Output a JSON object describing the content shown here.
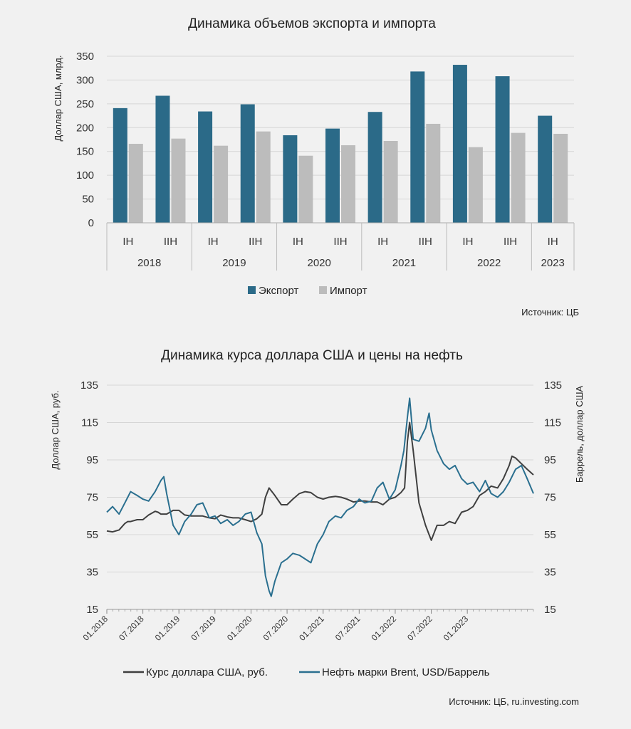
{
  "chart_data": [
    {
      "type": "bar",
      "title": "Динамика объемов экспорта и импорта",
      "ylabel": "Доллар США, млрд.",
      "xlabel": "",
      "ylim": [
        0,
        350
      ],
      "yticks": [
        0,
        50,
        100,
        150,
        200,
        250,
        300,
        350
      ],
      "categories": [
        "IH",
        "IIH",
        "IH",
        "IIH",
        "IH",
        "IIH",
        "IH",
        "IIH",
        "IH",
        "IIH",
        "IH"
      ],
      "years": [
        {
          "label": "2018",
          "span": 2
        },
        {
          "label": "2019",
          "span": 2
        },
        {
          "label": "2020",
          "span": 2
        },
        {
          "label": "2021",
          "span": 2
        },
        {
          "label": "2022",
          "span": 2
        },
        {
          "label": "2023",
          "span": 1
        }
      ],
      "series": [
        {
          "name": "Экспорт",
          "color": "#2b6a88",
          "values": [
            241,
            267,
            234,
            249,
            184,
            198,
            233,
            318,
            332,
            308,
            225
          ]
        },
        {
          "name": "Импорт",
          "color": "#bcbcbc",
          "values": [
            166,
            177,
            162,
            192,
            141,
            163,
            172,
            208,
            159,
            189,
            187
          ]
        }
      ],
      "source": "Источник: ЦБ",
      "legend_position": "bottom"
    },
    {
      "type": "line",
      "title": "Динамика курса доллара США и цены на нефть",
      "ylabel_left": "Доллар США, руб.",
      "ylabel_right": "Баррель, доллар США",
      "ylim": [
        15,
        135
      ],
      "yticks": [
        15,
        35,
        55,
        75,
        95,
        115,
        135
      ],
      "xlim": [
        2018.0,
        2023.917
      ],
      "xtick_values": [
        2018.0,
        2018.5,
        2019.0,
        2019.5,
        2020.0,
        2020.5,
        2021.0,
        2021.5,
        2022.0,
        2022.5,
        2023.0
      ],
      "xtick_labels": [
        "01.2018",
        "07.2018",
        "01.2019",
        "07.2019",
        "01.2020",
        "07.2020",
        "01.2021",
        "07.2021",
        "01.2022",
        "07.2022",
        "01.2023"
      ],
      "series": [
        {
          "name": "Курс доллара США, руб.",
          "color": "#3f3f3f",
          "axis": "left",
          "x": [
            2018.0,
            2018.08,
            2018.17,
            2018.25,
            2018.29,
            2018.33,
            2018.42,
            2018.5,
            2018.58,
            2018.67,
            2018.71,
            2018.75,
            2018.83,
            2018.92,
            2019.0,
            2019.08,
            2019.17,
            2019.25,
            2019.33,
            2019.42,
            2019.5,
            2019.58,
            2019.67,
            2019.75,
            2019.83,
            2019.92,
            2020.0,
            2020.08,
            2020.15,
            2020.2,
            2020.25,
            2020.33,
            2020.42,
            2020.5,
            2020.58,
            2020.67,
            2020.75,
            2020.83,
            2020.92,
            2021.0,
            2021.08,
            2021.17,
            2021.25,
            2021.33,
            2021.42,
            2021.5,
            2021.58,
            2021.67,
            2021.75,
            2021.83,
            2021.92,
            2022.0,
            2022.08,
            2022.13,
            2022.17,
            2022.2,
            2022.25,
            2022.33,
            2022.42,
            2022.47,
            2022.5,
            2022.55,
            2022.58,
            2022.67,
            2022.75,
            2022.83,
            2022.92,
            2023.0,
            2023.08,
            2023.17,
            2023.25,
            2023.33,
            2023.42,
            2023.5,
            2023.58,
            2023.62,
            2023.67,
            2023.75,
            2023.83,
            2023.917
          ],
          "values": [
            57,
            56.5,
            57.5,
            61,
            62,
            62,
            63,
            63,
            65.5,
            67.5,
            67,
            66,
            66,
            68,
            68,
            65.5,
            65,
            65,
            65,
            64,
            63.5,
            65.5,
            64.5,
            64,
            64,
            63,
            62,
            63.5,
            66,
            75,
            80,
            76,
            71,
            71,
            74,
            77,
            78,
            77.5,
            75,
            74,
            75,
            75.5,
            75,
            74,
            72.5,
            73,
            73,
            72.5,
            72.5,
            71,
            74,
            75,
            77.5,
            80,
            105,
            115,
            100,
            72,
            60,
            55,
            52,
            57,
            60,
            60,
            62,
            61,
            67,
            68,
            70,
            76,
            78,
            81,
            80,
            85,
            92,
            97,
            96,
            93,
            90,
            87
          ],
          "note": "right axis: Баррель, доллар США (same scale)"
        },
        {
          "name": "Нефть марки Brent,  USD/Баррель",
          "color": "#2a6f8f",
          "axis": "right",
          "x": [
            2018.0,
            2018.08,
            2018.17,
            2018.25,
            2018.33,
            2018.42,
            2018.5,
            2018.58,
            2018.67,
            2018.75,
            2018.79,
            2018.83,
            2018.92,
            2019.0,
            2019.08,
            2019.17,
            2019.25,
            2019.33,
            2019.42,
            2019.5,
            2019.58,
            2019.67,
            2019.75,
            2019.83,
            2019.92,
            2020.0,
            2020.08,
            2020.15,
            2020.2,
            2020.25,
            2020.28,
            2020.33,
            2020.42,
            2020.5,
            2020.58,
            2020.67,
            2020.75,
            2020.83,
            2020.92,
            2021.0,
            2021.08,
            2021.17,
            2021.25,
            2021.33,
            2021.42,
            2021.5,
            2021.58,
            2021.67,
            2021.75,
            2021.83,
            2021.92,
            2022.0,
            2022.08,
            2022.12,
            2022.17,
            2022.2,
            2022.25,
            2022.33,
            2022.42,
            2022.47,
            2022.5,
            2022.58,
            2022.67,
            2022.75,
            2022.83,
            2022.92,
            2023.0,
            2023.08,
            2023.17,
            2023.25,
            2023.33,
            2023.42,
            2023.5,
            2023.58,
            2023.67,
            2023.75,
            2023.83,
            2023.917
          ],
          "values": [
            67,
            70,
            66,
            72,
            78,
            76,
            74,
            73,
            78,
            84,
            86,
            77,
            60,
            55,
            62,
            66,
            71,
            72,
            64,
            65,
            61,
            63,
            60,
            62,
            66,
            67,
            56,
            50,
            33,
            25,
            22,
            30,
            40,
            42,
            45,
            44,
            42,
            40,
            50,
            55,
            62,
            65,
            64,
            68,
            70,
            74,
            72,
            73,
            80,
            83,
            74,
            79,
            92,
            100,
            118,
            128,
            106,
            105,
            112,
            120,
            111,
            100,
            93,
            90,
            92,
            85,
            82,
            83,
            78,
            84,
            77,
            75,
            78,
            83,
            90,
            92,
            85,
            77
          ]
        }
      ],
      "source": "Источник: ЦБ, ru.investing.com",
      "legend_position": "bottom"
    }
  ]
}
